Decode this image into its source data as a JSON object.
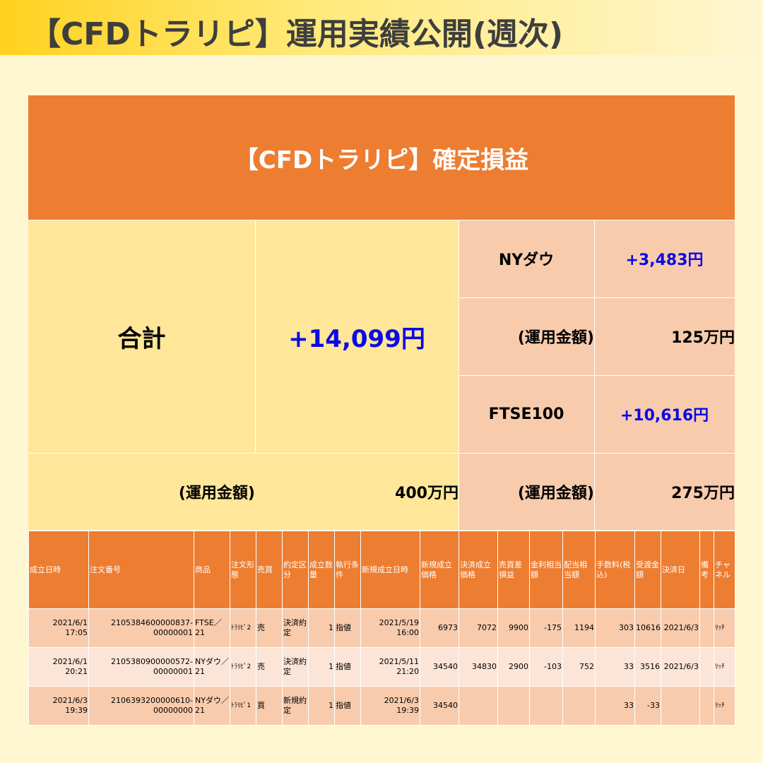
{
  "page_title": "【CFDトラリピ】運用実績公開(週次)",
  "summary": {
    "header": "【CFDトラリピ】確定損益",
    "total_label": "合計",
    "total_value": "+14,099円",
    "total_amount_label": "(運用金額)",
    "total_amount_value": "400万円",
    "ny_label": "NYダウ",
    "ny_value": "+3,483円",
    "ny_amount_label": "(運用金額)",
    "ny_amount_value": "125万円",
    "ftse_label": "FTSE100",
    "ftse_value": "+10,616円",
    "ftse_amount_label": "(運用金額)",
    "ftse_amount_value": "275万円"
  },
  "table": {
    "headers": [
      "成立日時",
      "注文番号",
      "商品",
      "注文形態",
      "売買",
      "約定区分",
      "成立数量",
      "執行条件",
      "新規成立日時",
      "新規成立価格",
      "決済成立価格",
      "売買差損益",
      "金利相当額",
      "配当相当額",
      "手数料(税込)",
      "受渡金額",
      "決済日",
      "備考",
      "チャネル"
    ],
    "rows": [
      [
        "2021/6/1 17:05",
        "2105384600000837-00000001",
        "FTSE／21",
        "ﾄﾗﾘﾋﾟ2",
        "売",
        "決済約定",
        "1",
        "指値",
        "2021/5/19 16:00",
        "6973",
        "7072",
        "9900",
        "-175",
        "1194",
        "303",
        "10616",
        "2021/6/3",
        "",
        "ﾘｯﾁ"
      ],
      [
        "2021/6/1 20:21",
        "2105380900000572-00000001",
        "NYダウ／21",
        "ﾄﾗﾘﾋﾟ2",
        "売",
        "決済約定",
        "1",
        "指値",
        "2021/5/11 21:20",
        "34540",
        "34830",
        "2900",
        "-103",
        "752",
        "33",
        "3516",
        "2021/6/3",
        "",
        "ﾘｯﾁ"
      ],
      [
        "2021/6/3 19:39",
        "2106393200000610-00000000",
        "NYダウ／21",
        "ﾄﾗﾘﾋﾟ1",
        "買",
        "新規約定",
        "1",
        "指値",
        "2021/6/3 19:39",
        "34540",
        "",
        "",
        "",
        "",
        "33",
        "-33",
        "",
        "",
        "ﾘｯﾁ"
      ]
    ]
  }
}
